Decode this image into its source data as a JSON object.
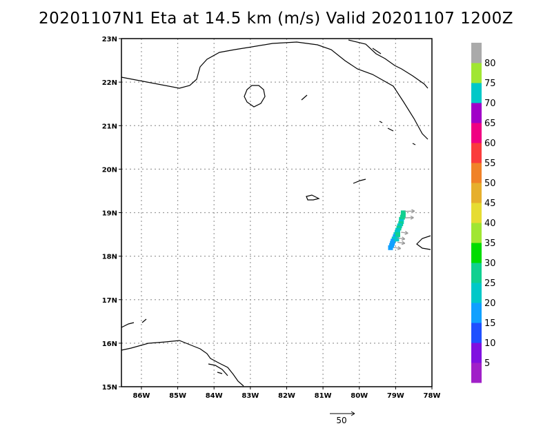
{
  "title": "20201107N1 Eta at 14.5 km (m/s) Valid 20201107  1200Z",
  "map": {
    "lon_range": [
      -86.55,
      -78.0
    ],
    "lat_range": [
      15.0,
      23.0
    ],
    "x_ticks": [
      "86W",
      "85W",
      "84W",
      "83W",
      "82W",
      "81W",
      "80W",
      "79W",
      "78W"
    ],
    "y_ticks": [
      "15N",
      "16N",
      "17N",
      "18N",
      "19N",
      "20N",
      "21N",
      "22N",
      "23N"
    ],
    "grid": "dotted",
    "coastline_color": "#000000",
    "grid_color": "#999999"
  },
  "colorbar": {
    "levels": [
      "5",
      "10",
      "15",
      "20",
      "25",
      "30",
      "35",
      "40",
      "45",
      "50",
      "55",
      "60",
      "65",
      "70",
      "75",
      "80"
    ],
    "colors": [
      "#a020c8",
      "#8010e0",
      "#2050ff",
      "#10a0ff",
      "#00c8c8",
      "#10d090",
      "#00dc00",
      "#a0e632",
      "#e6dc32",
      "#e6af2d",
      "#f08228",
      "#fa3c3c",
      "#f00082",
      "#a000c8",
      "#00c8c8",
      "#a0e632",
      "#aaaaaa"
    ]
  },
  "wind_field": {
    "cells": [
      [
        -78.8,
        19.0,
        25
      ],
      [
        -78.8,
        18.95,
        25
      ],
      [
        -78.82,
        18.9,
        25
      ],
      [
        -78.85,
        18.85,
        25
      ],
      [
        -78.85,
        18.8,
        20
      ],
      [
        -78.87,
        18.75,
        25
      ],
      [
        -78.9,
        18.7,
        20
      ],
      [
        -78.92,
        18.65,
        25
      ],
      [
        -78.95,
        18.6,
        20
      ],
      [
        -78.97,
        18.55,
        20
      ],
      [
        -79.0,
        18.5,
        20
      ],
      [
        -79.02,
        18.45,
        15
      ],
      [
        -79.05,
        18.4,
        20
      ],
      [
        -79.08,
        18.35,
        15
      ],
      [
        -79.1,
        18.3,
        15
      ],
      [
        -79.12,
        18.25,
        15
      ],
      [
        -79.15,
        18.2,
        15
      ],
      [
        -78.95,
        18.5,
        25
      ],
      [
        -78.98,
        18.4,
        20
      ]
    ],
    "arrows": [
      [
        -78.75,
        19.03,
        20
      ],
      [
        -78.75,
        18.88,
        18
      ],
      [
        -78.85,
        18.55,
        14
      ],
      [
        -78.95,
        18.42,
        15
      ],
      [
        -78.95,
        18.32,
        15
      ],
      [
        -79.05,
        18.2,
        14
      ]
    ],
    "arrow_color": "#999999"
  },
  "reference_vector": {
    "label": "50",
    "value": 50
  }
}
